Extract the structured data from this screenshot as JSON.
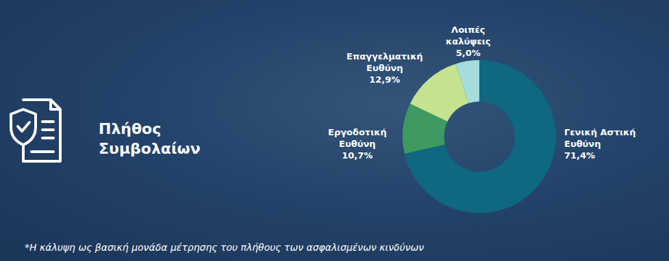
{
  "chart_data": {
    "type": "pie",
    "title": "Πλήθος Συμβολαίων",
    "annotations": [
      "*Η κάλυψη ως βασική μονάδα μέτρησης του πλήθους των ασφαλισμένων κινδύνων"
    ],
    "categories": [
      "Γενική Αστική Ευθύνη",
      "Εργοδοτική Ευθύνη",
      "Επαγγελματική Ευθύνη",
      "Λοιπές καλύψεις"
    ],
    "values": [
      71.4,
      10.7,
      12.9,
      5.0
    ],
    "value_labels": [
      "71,4%",
      "10,7%",
      "12,9%",
      "5,0%"
    ],
    "colors": [
      "#106780",
      "#3f9a62",
      "#c4e38f",
      "#a6dcdb"
    ],
    "data_labels": true
  }
}
